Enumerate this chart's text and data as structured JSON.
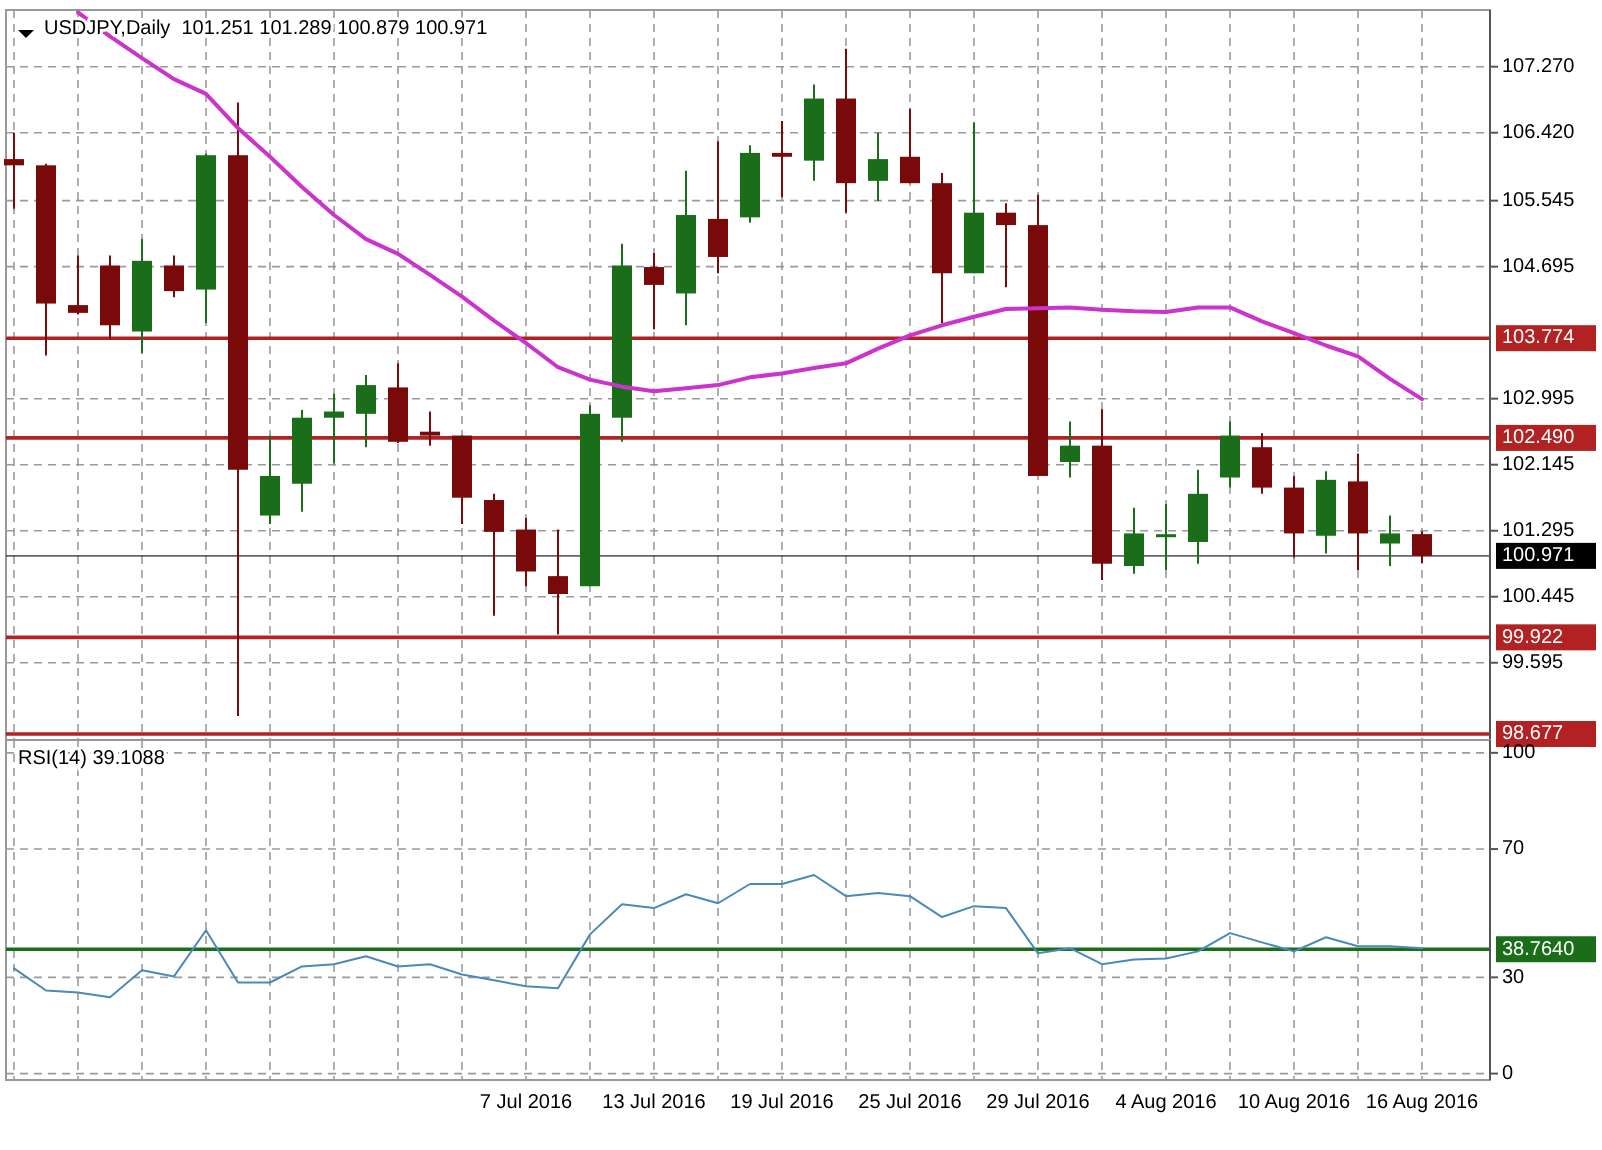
{
  "chart_data": [
    {
      "type": "candlestick",
      "title": "USDJPY,Daily  101.251 101.289 100.879 100.971",
      "tick_labels": "y",
      "grid": true,
      "categories": [
        null,
        null,
        null,
        null,
        null,
        null,
        null,
        null,
        null,
        null,
        null,
        null,
        null,
        null,
        null,
        null,
        null,
        null,
        null,
        null,
        null,
        null,
        null,
        null,
        null,
        null,
        null,
        null,
        null,
        null,
        null,
        null,
        null,
        null,
        null,
        null,
        null,
        null,
        null,
        null,
        null,
        null,
        null,
        null,
        null
      ],
      "ohlc": [
        [
          106.08,
          106.42,
          105.44,
          106.0
        ],
        [
          106.0,
          106.02,
          103.55,
          104.22
        ],
        [
          104.2,
          104.84,
          104.08,
          104.1
        ],
        [
          104.71,
          104.84,
          103.76,
          103.94
        ],
        [
          103.86,
          105.05,
          103.58,
          104.77
        ],
        [
          104.71,
          104.84,
          104.3,
          104.38
        ],
        [
          104.4,
          106.15,
          103.97,
          106.13
        ],
        [
          106.13,
          106.81,
          98.91,
          102.08
        ],
        [
          101.49,
          102.52,
          101.38,
          102.0
        ],
        [
          101.9,
          102.85,
          101.54,
          102.75
        ],
        [
          102.75,
          103.06,
          102.16,
          102.83
        ],
        [
          102.8,
          103.3,
          102.37,
          103.17
        ],
        [
          103.14,
          103.45,
          102.42,
          102.44
        ],
        [
          102.57,
          102.83,
          102.39,
          102.52
        ],
        [
          102.52,
          102.52,
          101.38,
          101.72
        ],
        [
          101.69,
          101.77,
          100.2,
          101.28
        ],
        [
          101.31,
          101.46,
          100.58,
          100.77
        ],
        [
          100.71,
          101.31,
          99.96,
          100.48
        ],
        [
          100.58,
          102.91,
          100.58,
          102.8
        ],
        [
          102.75,
          104.99,
          102.44,
          104.71
        ],
        [
          104.69,
          104.87,
          103.89,
          104.46
        ],
        [
          104.35,
          105.93,
          103.94,
          105.36
        ],
        [
          105.31,
          106.31,
          104.61,
          104.82
        ],
        [
          105.33,
          106.26,
          105.26,
          106.16
        ],
        [
          106.16,
          106.57,
          105.59,
          106.11
        ],
        [
          106.06,
          107.04,
          105.8,
          106.86
        ],
        [
          106.86,
          107.5,
          105.39,
          105.77
        ],
        [
          105.8,
          106.42,
          105.54,
          106.08
        ],
        [
          106.11,
          106.73,
          105.77,
          105.77
        ],
        [
          105.77,
          105.9,
          103.97,
          104.61
        ],
        [
          104.61,
          106.55,
          104.61,
          105.39
        ],
        [
          105.39,
          105.51,
          104.43,
          105.23
        ],
        [
          105.23,
          105.62,
          102.0,
          102.0
        ],
        [
          102.18,
          102.7,
          101.98,
          102.39
        ],
        [
          102.39,
          102.86,
          100.66,
          100.87
        ],
        [
          100.84,
          101.59,
          100.74,
          101.26
        ],
        [
          101.23,
          101.64,
          100.79,
          101.25
        ],
        [
          101.15,
          102.08,
          100.87,
          101.77
        ],
        [
          101.98,
          102.7,
          101.85,
          102.52
        ],
        [
          102.37,
          102.55,
          101.77,
          101.85
        ],
        [
          101.85,
          102.0,
          100.95,
          101.26
        ],
        [
          101.23,
          102.06,
          101.0,
          101.95
        ],
        [
          101.93,
          102.29,
          100.79,
          101.26
        ],
        [
          101.13,
          101.49,
          100.84,
          101.26
        ],
        [
          101.251,
          101.289,
          100.879,
          100.971
        ]
      ],
      "colors": [
        "#7a0a0a",
        "#7a0a0a",
        "#7a0a0a",
        "#7a0a0a",
        "#1a6e1a",
        "#7a0a0a",
        "#1a6e1a",
        "#7a0a0a",
        "#1a6e1a",
        "#1a6e1a",
        "#1a6e1a",
        "#1a6e1a",
        "#7a0a0a",
        "#7a0a0a",
        "#7a0a0a",
        "#7a0a0a",
        "#7a0a0a",
        "#7a0a0a",
        "#1a6e1a",
        "#1a6e1a",
        "#7a0a0a",
        "#1a6e1a",
        "#7a0a0a",
        "#1a6e1a",
        "#7a0a0a",
        "#1a6e1a",
        "#7a0a0a",
        "#1a6e1a",
        "#7a0a0a",
        "#7a0a0a",
        "#1a6e1a",
        "#7a0a0a",
        "#7a0a0a",
        "#1a6e1a",
        "#7a0a0a",
        "#1a6e1a",
        "#1a6e1a",
        "#1a6e1a",
        "#1a6e1a",
        "#7a0a0a",
        "#7a0a0a",
        "#1a6e1a",
        "#7a0a0a",
        "#1a6e1a",
        "#7a0a0a"
      ],
      "series": [
        {
          "type": "line",
          "color": "#cc33cc",
          "values": [
            null,
            null,
            107.97,
            107.66,
            107.38,
            107.11,
            106.92,
            106.48,
            106.11,
            105.72,
            105.36,
            105.05,
            104.86,
            104.59,
            104.31,
            104.0,
            103.71,
            103.4,
            103.24,
            103.15,
            103.09,
            103.13,
            103.17,
            103.27,
            103.32,
            103.39,
            103.45,
            103.64,
            103.81,
            103.94,
            104.05,
            104.15,
            104.16,
            104.17,
            104.14,
            104.12,
            104.11,
            104.17,
            104.17,
            103.99,
            103.84,
            103.68,
            103.54,
            103.25,
            102.99
          ]
        }
      ],
      "ylim": [
        98.6,
        108.0
      ],
      "yticks": [
        {
          "value": 107.27,
          "label": "107.270"
        },
        {
          "value": 106.42,
          "label": "106.420"
        },
        {
          "value": 105.545,
          "label": "105.545"
        },
        {
          "value": 104.695,
          "label": "104.695"
        },
        {
          "value": 102.995,
          "label": "102.995"
        },
        {
          "value": 102.145,
          "label": "102.145"
        },
        {
          "value": 101.295,
          "label": "101.295"
        },
        {
          "value": 100.445,
          "label": "100.445"
        },
        {
          "value": 99.595,
          "label": "99.595"
        }
      ],
      "ref_lines": [
        {
          "axis": "y",
          "value": 103.774,
          "label": "103.774",
          "color": "#b22222"
        },
        {
          "axis": "y",
          "value": 102.49,
          "label": "102.490",
          "color": "#b22222"
        },
        {
          "axis": "y",
          "value": 99.922,
          "label": "99.922",
          "color": "#b22222"
        },
        {
          "axis": "y",
          "value": 98.677,
          "label": "98.677",
          "color": "#b22222"
        },
        {
          "axis": "y",
          "value": 100.971,
          "label": "100.971",
          "color": "#000000"
        }
      ]
    },
    {
      "type": "line",
      "title": "RSI(14) 39.1088",
      "grid": true,
      "categories": [
        null,
        null,
        null,
        null,
        null,
        null,
        null,
        null,
        null,
        null,
        null,
        null,
        null,
        null,
        null,
        null,
        "7 Jul 2016",
        null,
        null,
        null,
        "13 Jul 2016",
        null,
        null,
        null,
        "19 Jul 2016",
        null,
        null,
        null,
        "25 Jul 2016",
        null,
        null,
        null,
        "29 Jul 2016",
        null,
        null,
        null,
        "4 Aug 2016",
        null,
        null,
        null,
        "10 Aug 2016",
        null,
        null,
        null,
        "16 Aug 2016"
      ],
      "series": [
        {
          "color": "#4a8ab8",
          "values": [
            32.8,
            25.9,
            25.3,
            23.8,
            32.2,
            30.3,
            44.7,
            28.4,
            28.4,
            33.4,
            34.1,
            36.6,
            33.4,
            34.1,
            30.9,
            29.1,
            27.2,
            26.6,
            43.4,
            52.8,
            51.6,
            55.9,
            53.1,
            59.1,
            59.1,
            61.9,
            55.3,
            56.3,
            55.3,
            48.8,
            52.2,
            51.6,
            37.5,
            39.1,
            34.1,
            35.6,
            35.9,
            38.1,
            43.8,
            40.9,
            38.1,
            42.5,
            39.7,
            39.7,
            39.1
          ]
        }
      ],
      "ylim": [
        -2,
        104
      ],
      "yticks": [
        0,
        30,
        70,
        100
      ],
      "ref_lines": [
        {
          "axis": "y",
          "value": 38.764,
          "label": "38.7640",
          "color": "#1a6e1a"
        }
      ]
    }
  ]
}
